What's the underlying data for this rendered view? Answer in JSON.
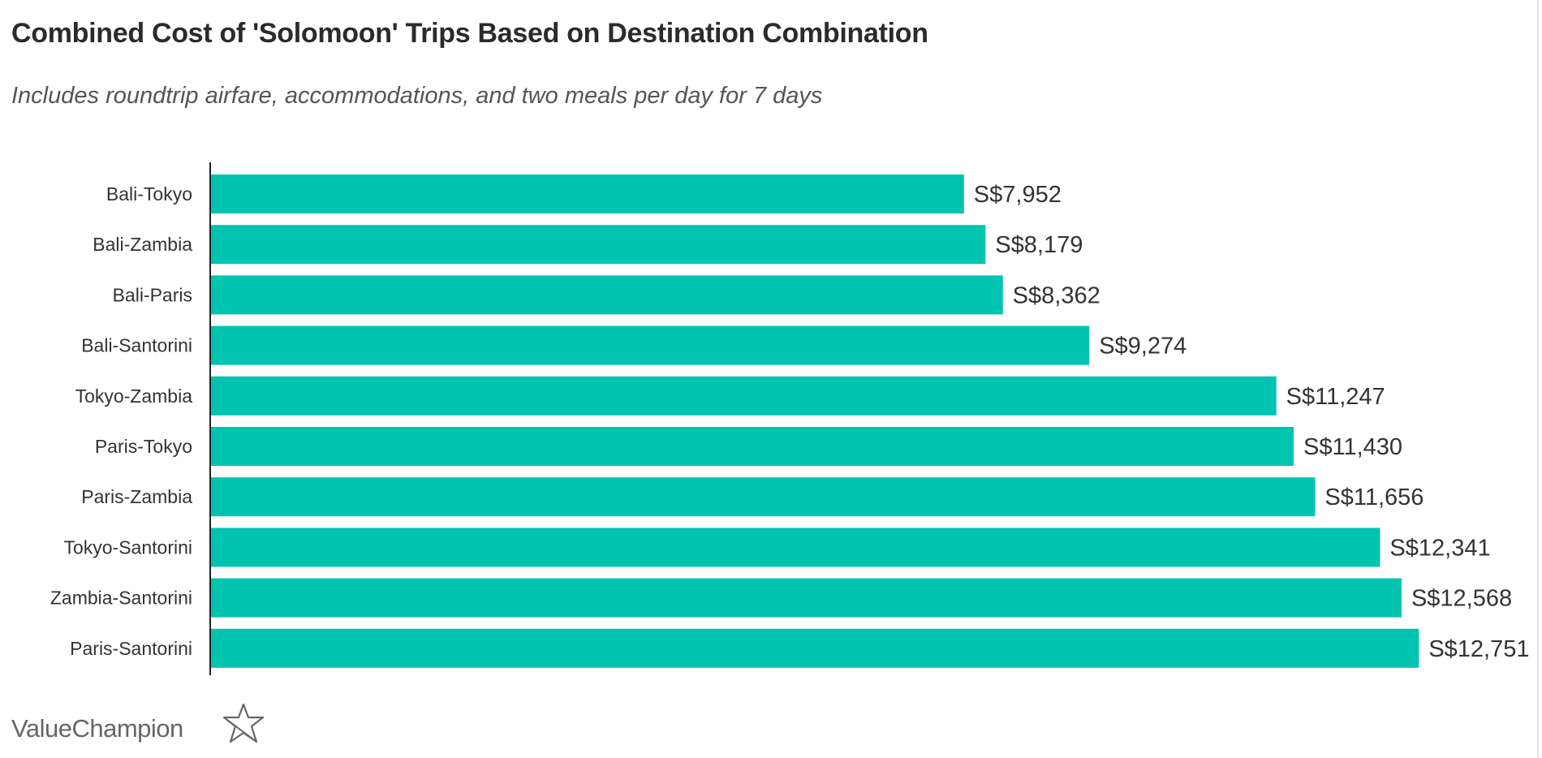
{
  "chart_data": {
    "type": "bar",
    "orientation": "horizontal",
    "title": "Combined Cost of 'Solomoon' Trips Based on Destination Combination",
    "subtitle": "Includes roundtrip airfare, accommodations, and two meals per day for 7 days",
    "xlabel": "",
    "ylabel": "",
    "categories": [
      "Bali-Tokyo",
      "Bali-Zambia",
      "Bali-Paris",
      "Bali-Santorini",
      "Tokyo-Zambia",
      "Paris-Tokyo",
      "Paris-Zambia",
      "Tokyo-Santorini",
      "Zambia-Santorini",
      "Paris-Santorini"
    ],
    "values": [
      7952,
      8179,
      8362,
      9274,
      11247,
      11430,
      11656,
      12341,
      12568,
      12751
    ],
    "data_labels": [
      "S$7,952",
      "S$8,179",
      "S$8,362",
      "S$9,274",
      "S$11,247",
      "S$11,430",
      "S$11,656",
      "S$12,341",
      "S$12,568",
      "S$12,751"
    ],
    "xlim": [
      0,
      13000
    ],
    "grid": false,
    "bar_color": "#00c4b0"
  },
  "logo": {
    "text": "ValueChampion"
  }
}
